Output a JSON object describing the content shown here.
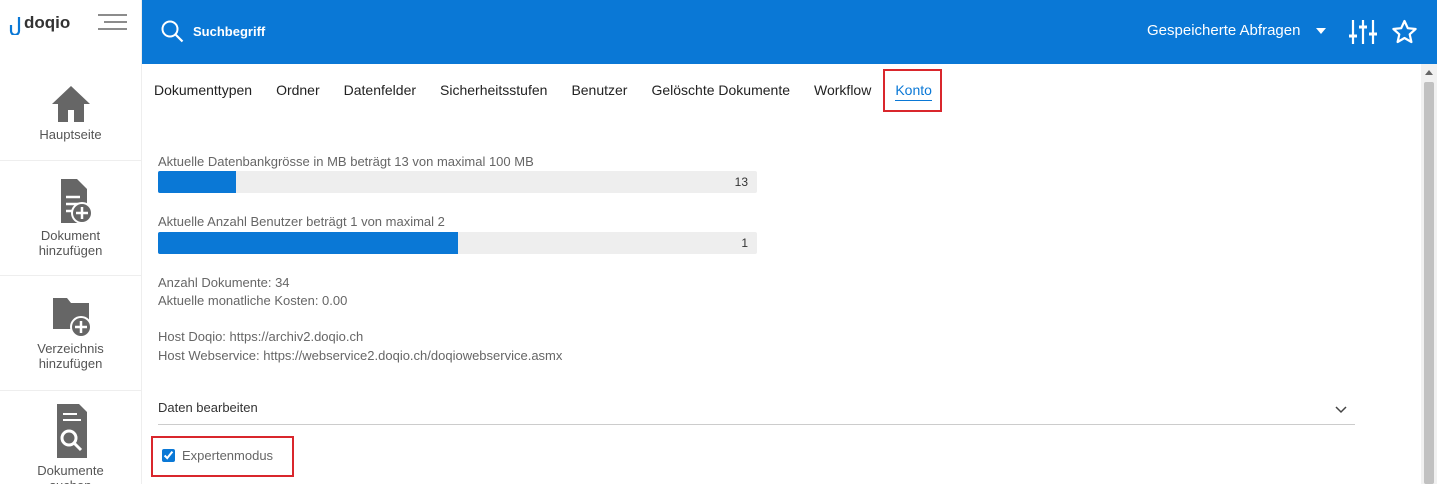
{
  "sidebar": {
    "logo": "doqio",
    "items": [
      "Hauptseite",
      "Dokument hinzufügen",
      "Verzeichnis hinzufügen",
      "Dokumente suchen"
    ]
  },
  "header": {
    "search_placeholder": "Suchbegriff",
    "saved_queries": "Gespeicherte Abfragen"
  },
  "tabs": {
    "items": [
      "Dokumenttypen",
      "Ordner",
      "Datenfelder",
      "Sicherheitsstufen",
      "Benutzer",
      "Gelöschte Dokumente",
      "Workflow",
      "Konto"
    ],
    "active": 7
  },
  "account": {
    "progress": [
      {
        "label": "Aktuelle Datenbankgrösse in MB beträgt 13 von maximal 100 MB",
        "value": 13,
        "max": 100
      },
      {
        "label": "Aktuelle Anzahl Benutzer beträgt 1 von maximal 2",
        "value": 1,
        "max": 2
      }
    ],
    "documents": "Anzahl Dokumente: 34",
    "costs": "Aktuelle monatliche Kosten: 0.00",
    "host": "Host Doqio: https://archiv2.doqio.ch",
    "webservice": "Host Webservice: https://webservice2.doqio.ch/doqiowebservice.asmx",
    "edit_section": "Daten bearbeiten",
    "expert_mode": {
      "label": "Expertenmodus",
      "checked": true
    }
  }
}
